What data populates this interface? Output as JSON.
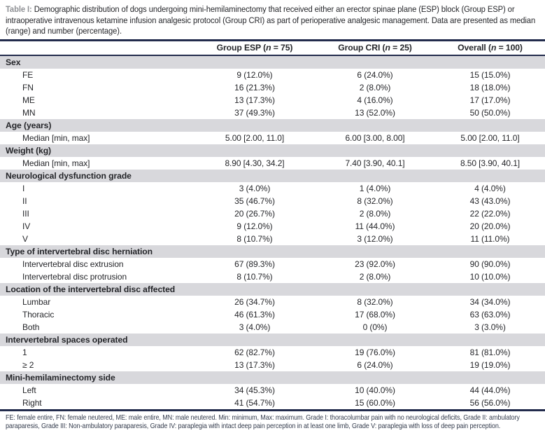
{
  "colors": {
    "rule_navy": "#222b4c",
    "band_gray": "#d8d8dc",
    "caption_label_gray": "#8e9094",
    "body_text": "#25262a",
    "footnote_text": "#343c4d"
  },
  "caption": {
    "label": "Table I:",
    "text": " Demographic distribution of dogs undergoing mini-hemilaminectomy that received either an erector spinae plane (ESP) block (Group ESP) or intraoperative intravenous ketamine infusion analgesic protocol (Group CRI) as part of perioperative analgesic management. Data are presented as median (range) and number (percentage)."
  },
  "columns": [
    {
      "pre": "Group ESP (",
      "italic": "n",
      "post": " = 75)"
    },
    {
      "pre": "Group CRI (",
      "italic": "n",
      "post": " = 25)"
    },
    {
      "pre": "Overall (",
      "italic": "n",
      "post": " = 100)"
    }
  ],
  "sections": [
    {
      "header": "Sex",
      "rows": [
        {
          "label": "FE",
          "esp": "9 (12.0%)",
          "cri": "6 (24.0%)",
          "overall": "15 (15.0%)"
        },
        {
          "label": "FN",
          "esp": "16 (21.3%)",
          "cri": "2 (8.0%)",
          "overall": "18 (18.0%)"
        },
        {
          "label": "ME",
          "esp": "13 (17.3%)",
          "cri": "4 (16.0%)",
          "overall": "17 (17.0%)"
        },
        {
          "label": "MN",
          "esp": "37 (49.3%)",
          "cri": "13 (52.0%)",
          "overall": "50 (50.0%)"
        }
      ]
    },
    {
      "header": "Age (years)",
      "rows": [
        {
          "label": "Median [min, max]",
          "esp": "5.00 [2.00, 11.0]",
          "cri": "6.00 [3.00, 8.00]",
          "overall": "5.00 [2.00, 11.0]"
        }
      ]
    },
    {
      "header": "Weight (kg)",
      "rows": [
        {
          "label": "Median [min, max]",
          "esp": "8.90 [4.30, 34.2]",
          "cri": "7.40 [3.90, 40.1]",
          "overall": "8.50 [3.90, 40.1]"
        }
      ]
    },
    {
      "header": "Neurological dysfunction grade",
      "rows": [
        {
          "label": "I",
          "esp": "3 (4.0%)",
          "cri": "1 (4.0%)",
          "overall": "4 (4.0%)"
        },
        {
          "label": "II",
          "esp": "35 (46.7%)",
          "cri": "8 (32.0%)",
          "overall": "43 (43.0%)"
        },
        {
          "label": "III",
          "esp": "20 (26.7%)",
          "cri": "2 (8.0%)",
          "overall": "22 (22.0%)"
        },
        {
          "label": "IV",
          "esp": "9 (12.0%)",
          "cri": "11 (44.0%)",
          "overall": "20 (20.0%)"
        },
        {
          "label": "V",
          "esp": "8 (10.7%)",
          "cri": "3 (12.0%)",
          "overall": "11 (11.0%)"
        }
      ]
    },
    {
      "header": "Type of intervertebral disc herniation",
      "rows": [
        {
          "label": "Intervertebral disc extrusion",
          "esp": "67 (89.3%)",
          "cri": "23 (92.0%)",
          "overall": "90 (90.0%)"
        },
        {
          "label": "Intervertebral disc protrusion",
          "esp": "8 (10.7%)",
          "cri": "2 (8.0%)",
          "overall": "10 (10.0%)"
        }
      ]
    },
    {
      "header": "Location of the intervertebral disc affected",
      "rows": [
        {
          "label": "Lumbar",
          "esp": "26 (34.7%)",
          "cri": "8 (32.0%)",
          "overall": "34 (34.0%)"
        },
        {
          "label": "Thoracic",
          "esp": "46 (61.3%)",
          "cri": "17 (68.0%)",
          "overall": "63 (63.0%)"
        },
        {
          "label": "Both",
          "esp": "3 (4.0%)",
          "cri": "0 (0%)",
          "overall": "3 (3.0%)"
        }
      ]
    },
    {
      "header": "Intervertebral spaces operated",
      "rows": [
        {
          "label": "1",
          "esp": "62 (82.7%)",
          "cri": "19 (76.0%)",
          "overall": "81 (81.0%)"
        },
        {
          "label": "≥ 2",
          "esp": "13 (17.3%)",
          "cri": "6 (24.0%)",
          "overall": "19 (19.0%)"
        }
      ]
    },
    {
      "header": "Mini-hemilaminectomy side",
      "rows": [
        {
          "label": "Left",
          "esp": "34 (45.3%)",
          "cri": "10 (40.0%)",
          "overall": "44 (44.0%)"
        },
        {
          "label": "Right",
          "esp": "41 (54.7%)",
          "cri": "15 (60.0%)",
          "overall": "56 (56.0%)"
        }
      ]
    }
  ],
  "footnote": "FE: female entire, FN: female neutered, ME: male entire, MN: male neutered. Min: minimum, Max: maximum. Grade I: thoracolumbar pain with no neurological deficits, Grade II: ambulatory paraparesis, Grade III: Non-ambulatory paraparesis, Grade IV: paraplegia with intact deep pain perception in at least one limb, Grade V: paraplegia with loss of deep pain perception."
}
